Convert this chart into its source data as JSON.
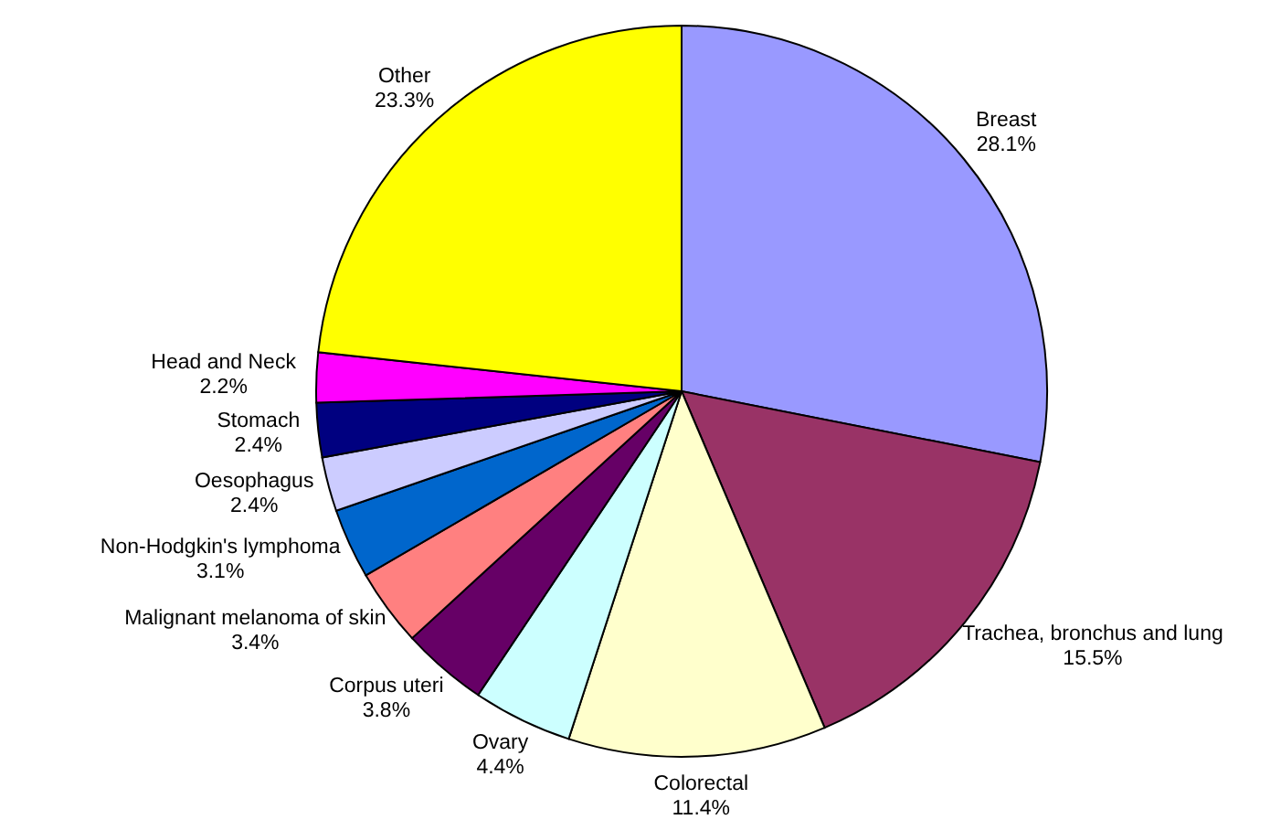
{
  "chart_data": {
    "type": "pie",
    "categories": [
      "Breast",
      "Trachea, bronchus and lung",
      "Colorectal",
      "Ovary",
      "Corpus uteri",
      "Malignant melanoma of skin",
      "Non-Hodgkin's lymphoma",
      "Oesophagus",
      "Stomach",
      "Head and Neck",
      "Other"
    ],
    "values": [
      28.1,
      15.5,
      11.4,
      4.4,
      3.8,
      3.4,
      3.1,
      2.4,
      2.4,
      2.2,
      23.3
    ],
    "colors": [
      "#9999ff",
      "#993366",
      "#ffffcc",
      "#ccffff",
      "#660066",
      "#ff8080",
      "#0066cc",
      "#ccccff",
      "#000080",
      "#ff00ff",
      "#ffff00"
    ],
    "value_labels": [
      "28.1%",
      "15.5%",
      "11.4%",
      "4.4%",
      "3.8%",
      "3.4%",
      "3.1%",
      "2.4%",
      "2.4%",
      "2.2%",
      "23.3%"
    ]
  }
}
